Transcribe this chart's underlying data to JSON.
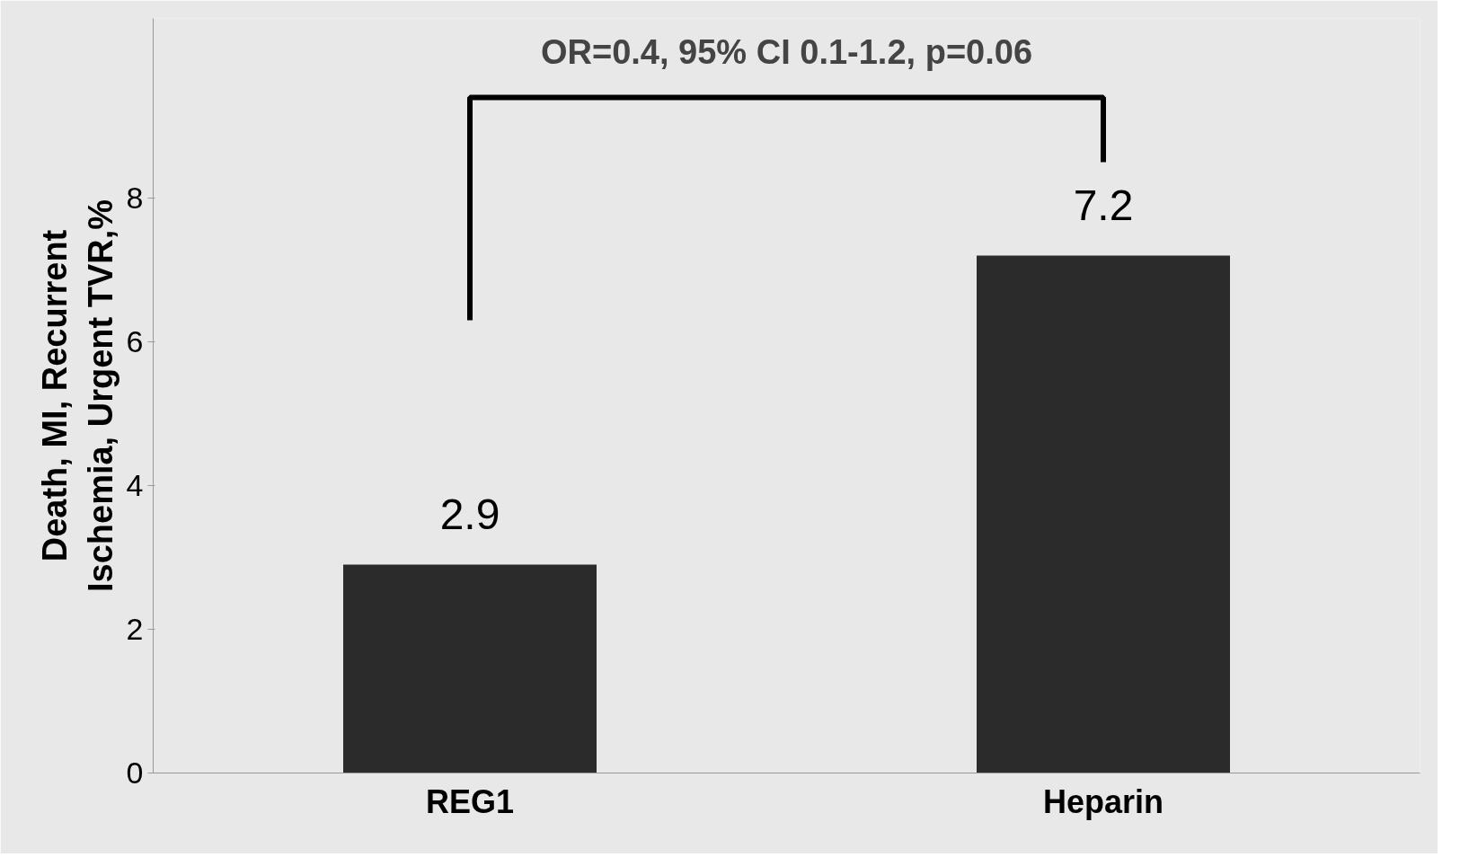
{
  "chart_data": {
    "type": "bar",
    "categories": [
      "REG1",
      "Heparin"
    ],
    "values": [
      2.9,
      7.2
    ],
    "color": "#2b2b2b",
    "ylabel": "Death, MI, Recurrent\nIschemia, Urgent TVR,%",
    "ylim": [
      0,
      10.5
    ],
    "yticks": [
      0,
      2,
      4,
      6,
      8
    ],
    "data_labels": true,
    "annotations": [
      "OR=0.4, 95% CI 0.1-1.2, p=0.06"
    ]
  }
}
